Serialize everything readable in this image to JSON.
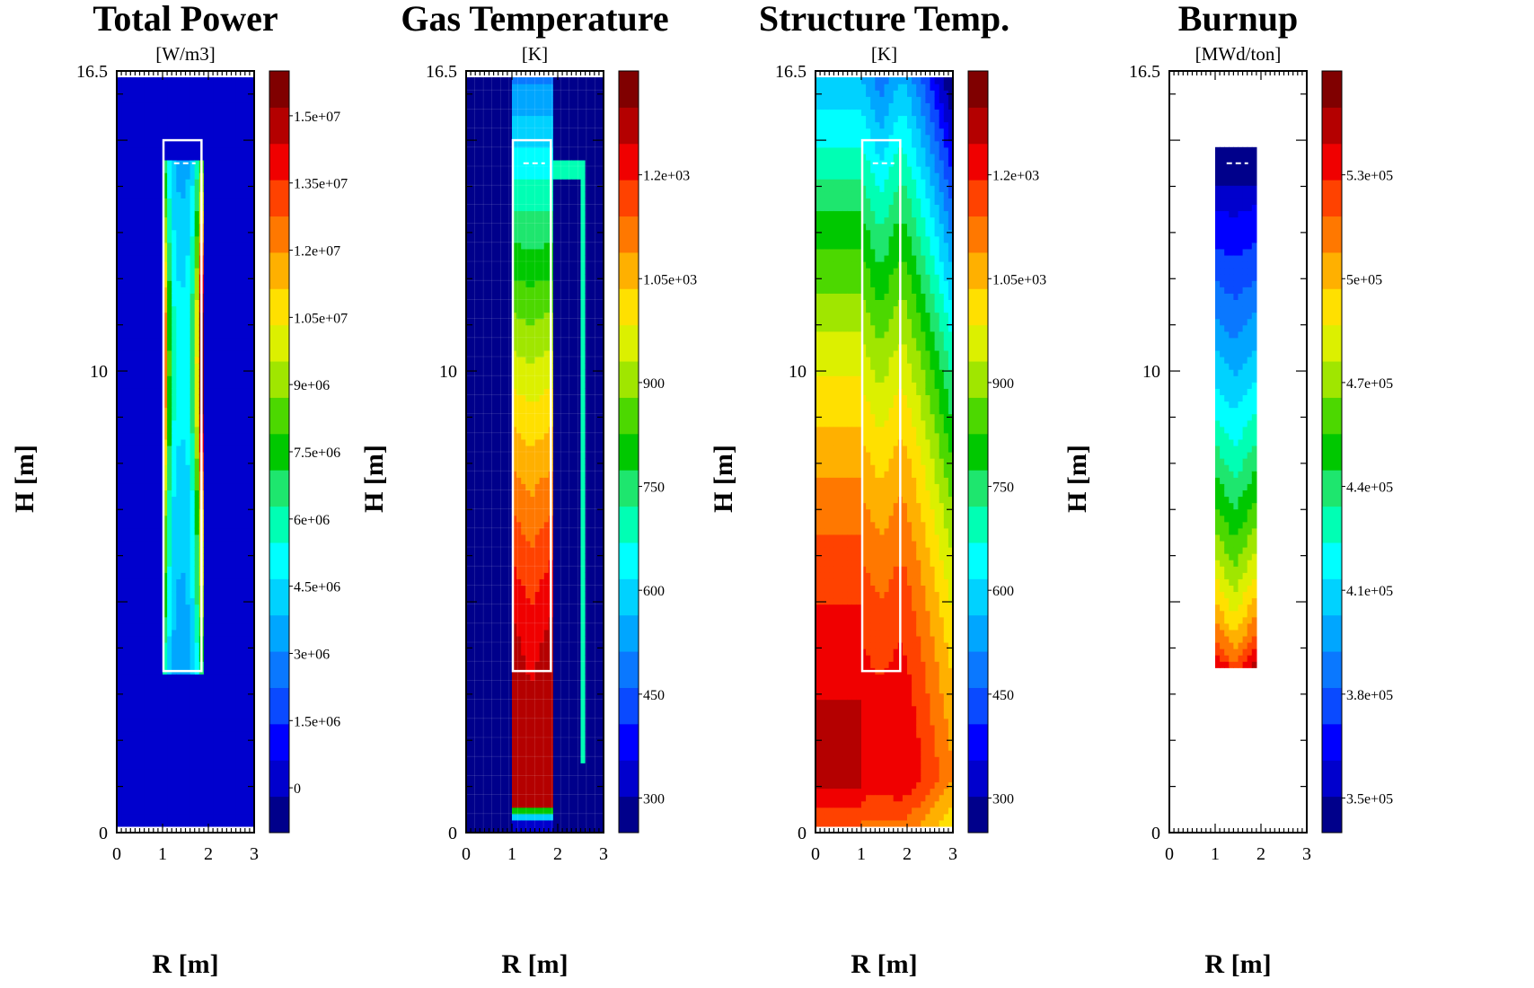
{
  "figure": {
    "axis_xlabel": "R [m]",
    "axis_ylabel": "H [m]"
  },
  "chart_data": [
    {
      "type": "heatmap",
      "title": "Total Power",
      "unit": "[W/m3]",
      "xlabel": "R [m]",
      "ylabel": "H [m]",
      "xlim": [
        0,
        3
      ],
      "ylim": [
        0,
        16.5
      ],
      "x_ticks": [
        "0",
        "1",
        "2",
        "3"
      ],
      "y_ticks": [
        "0",
        "10",
        "16.5"
      ],
      "colorbar_labels": [
        "0",
        "1.5e+06",
        "3e+06",
        "4.5e+06",
        "6e+06",
        "7.5e+06",
        "9e+06",
        "1.05e+07",
        "1.2e+07",
        "1.35e+07",
        "1.5e+07"
      ],
      "colorbar_values": [
        0,
        1500000,
        3000000,
        4500000,
        6000000,
        7500000,
        9000000,
        10500000,
        12000000,
        13500000,
        15000000
      ],
      "colorbar_range": [
        -1000000,
        16000000
      ],
      "field": "power"
    },
    {
      "type": "heatmap",
      "title": "Gas Temperature",
      "unit": "[K]",
      "xlabel": "R [m]",
      "ylabel": "H [m]",
      "xlim": [
        0,
        3
      ],
      "ylim": [
        0,
        16.5
      ],
      "x_ticks": [
        "0",
        "1",
        "2",
        "3"
      ],
      "y_ticks": [
        "0",
        "10",
        "16.5"
      ],
      "colorbar_labels": [
        "300",
        "450",
        "600",
        "750",
        "900",
        "1.05e+03",
        "1.2e+03"
      ],
      "colorbar_values": [
        300,
        450,
        600,
        750,
        900,
        1050,
        1200
      ],
      "colorbar_range": [
        250,
        1350
      ],
      "field": "gas"
    },
    {
      "type": "heatmap",
      "title": "Structure Temp.",
      "unit": "[K]",
      "xlabel": "R [m]",
      "ylabel": "H [m]",
      "xlim": [
        0,
        3
      ],
      "ylim": [
        0,
        16.5
      ],
      "x_ticks": [
        "0",
        "1",
        "2",
        "3"
      ],
      "y_ticks": [
        "0",
        "10",
        "16.5"
      ],
      "colorbar_labels": [
        "300",
        "450",
        "600",
        "750",
        "900",
        "1.05e+03",
        "1.2e+03"
      ],
      "colorbar_values": [
        300,
        450,
        600,
        750,
        900,
        1050,
        1200
      ],
      "colorbar_range": [
        250,
        1350
      ],
      "field": "structure"
    },
    {
      "type": "heatmap",
      "title": "Burnup",
      "unit": "[MWd/ton]",
      "xlabel": "R [m]",
      "ylabel": "H [m]",
      "xlim": [
        0,
        3
      ],
      "ylim": [
        0,
        16.5
      ],
      "x_ticks": [
        "0",
        "1",
        "2",
        "3"
      ],
      "y_ticks": [
        "0",
        "10",
        "16.5"
      ],
      "colorbar_labels": [
        "3.5e+05",
        "3.8e+05",
        "4.1e+05",
        "4.4e+05",
        "4.7e+05",
        "5e+05",
        "5.3e+05"
      ],
      "colorbar_values": [
        350000,
        380000,
        410000,
        440000,
        470000,
        500000,
        530000
      ],
      "colorbar_range": [
        340000,
        560000
      ],
      "field": "burnup"
    }
  ]
}
